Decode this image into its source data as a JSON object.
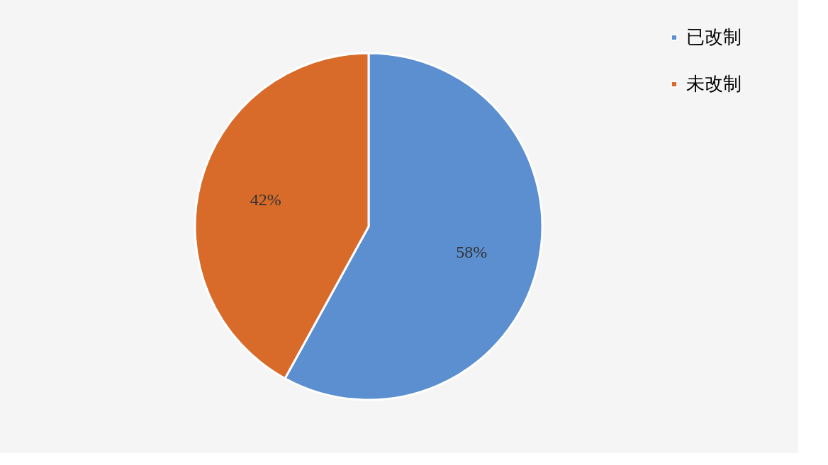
{
  "chart_data": {
    "type": "pie",
    "categories": [
      "已改制",
      "未改制"
    ],
    "values": [
      58,
      42
    ],
    "colors": [
      "#5b8fd0",
      "#d86a2a"
    ],
    "value_labels": [
      "58%",
      "42%"
    ],
    "legend": "right"
  }
}
